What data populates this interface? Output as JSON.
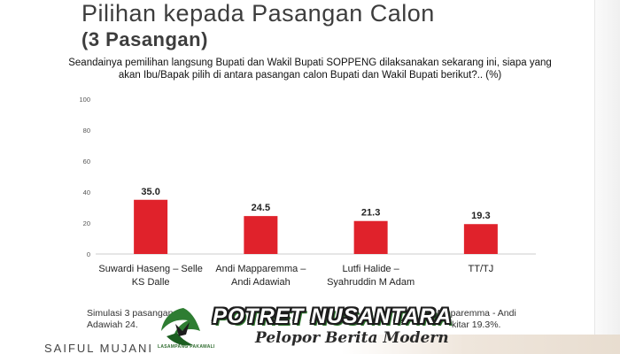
{
  "header": {
    "title": "Pilihan kepada Pasangan Calon",
    "subtitle": "(3 Pasangan)",
    "question_line1": "Seandainya pemilihan langsung Bupati dan Wakil Bupati SOPPENG dilaksanakan sekarang ini, siapa yang",
    "question_line2": "akan Ibu/Bapak pilih di antara pasangan calon Bupati dan Wakil Bupati berikut?.. (%)"
  },
  "chart_data": {
    "type": "bar",
    "categories": [
      [
        "Suwardi Haseng – Selle",
        "KS Dalle"
      ],
      [
        "Andi Mapparemma –",
        "Andi Adawiah"
      ],
      [
        "Lutfi Halide –",
        "Syahruddin M Adam"
      ],
      [
        "TT/TJ"
      ]
    ],
    "values": [
      35.0,
      24.5,
      21.3,
      19.3
    ],
    "value_labels": [
      "35.0",
      "24.5",
      "21.3",
      "19.3"
    ],
    "yticks": [
      "100",
      "80",
      "60",
      "40",
      "20",
      "0"
    ],
    "ylim": [
      0,
      100
    ],
    "bar_color": "#e0222b",
    "grid": false
  },
  "footnote": {
    "line1_left": "Simulasi 3 pasangan, S",
    "line1_right": "i Mapparemma - Andi",
    "line2_left": "Adawiah 24.",
    "line2_right": "kitar 19.3%."
  },
  "footer": {
    "brand": "SAIFUL MUJANI"
  },
  "watermark": {
    "title": "POTRET NUSANTARA",
    "tagline": "Pelopor Berita Modern",
    "logo_text": "LASAMPANG PAKAWALI",
    "green": "#2e7d32"
  }
}
